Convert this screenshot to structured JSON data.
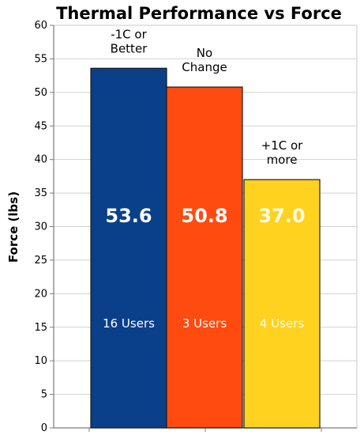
{
  "chart_data": {
    "type": "bar",
    "title": "Thermal Performance vs Force",
    "xlabel": "",
    "ylabel": "Force (lbs)",
    "ylim": [
      0,
      60
    ],
    "yticks": [
      "0",
      "5",
      "10",
      "15",
      "20",
      "25",
      "30",
      "35",
      "40",
      "45",
      "50",
      "55",
      "60"
    ],
    "grid": true,
    "legend": "none",
    "categories": [
      [
        "-1C or",
        "Better"
      ],
      [
        "No",
        "Change"
      ],
      [
        "+1C or",
        "more"
      ]
    ],
    "values": [
      53.6,
      50.8,
      37.0
    ],
    "value_labels": [
      "53.6",
      "50.8",
      "37.0"
    ],
    "user_labels": [
      "16 Users",
      "3 Users",
      "4 Users"
    ],
    "colors": [
      "#0a3f8a",
      "#ff4b10",
      "#ffd21f"
    ],
    "label_colors": [
      "#ffffff",
      "#ffffff",
      "#fffbe8"
    ]
  }
}
